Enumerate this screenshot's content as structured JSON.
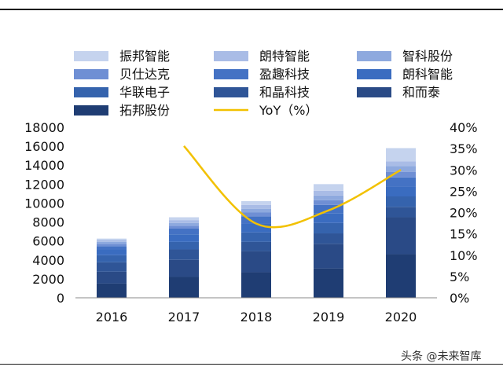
{
  "chart_data": {
    "type": "bar",
    "categories": [
      "2016",
      "2017",
      "2018",
      "2019",
      "2020"
    ],
    "series": [
      {
        "name": "拓邦股份",
        "color": "#1f3d73",
        "values": [
          1500,
          2200,
          2700,
          3100,
          4600
        ]
      },
      {
        "name": "和而泰",
        "color": "#2a4a86",
        "values": [
          1250,
          1800,
          2200,
          2600,
          3900
        ]
      },
      {
        "name": "和晶科技",
        "color": "#2f5597",
        "values": [
          1000,
          1100,
          1000,
          1100,
          1100
        ]
      },
      {
        "name": "华联电子",
        "color": "#3563ad",
        "values": [
          750,
          800,
          1000,
          1100,
          1100
        ]
      },
      {
        "name": "朗科智能",
        "color": "#3a6cc0",
        "values": [
          600,
          800,
          900,
          1000,
          1000
        ]
      },
      {
        "name": "盈趣科技",
        "color": "#4472c4",
        "values": [
          350,
          600,
          800,
          900,
          1000
        ]
      },
      {
        "name": "贝仕达克",
        "color": "#6f8fd4",
        "values": [
          250,
          300,
          400,
          500,
          600
        ]
      },
      {
        "name": "智科股份",
        "color": "#8ea9de",
        "values": [
          200,
          300,
          400,
          500,
          600
        ]
      },
      {
        "name": "朗特智能",
        "color": "#a9bce6",
        "values": [
          200,
          300,
          400,
          500,
          500
        ]
      },
      {
        "name": "振邦智能",
        "color": "#c5d3ee",
        "values": [
          150,
          300,
          400,
          700,
          1400
        ]
      }
    ],
    "line": {
      "name": "YoY（%）",
      "color": "#f2c100",
      "axis": "right",
      "values": [
        null,
        35.6,
        17.4,
        20.5,
        30.0
      ]
    },
    "y_left": {
      "min": 0,
      "max": 18000,
      "step": 2000,
      "ticks": [
        "0",
        "2000",
        "4000",
        "6000",
        "8000",
        "10000",
        "12000",
        "14000",
        "16000",
        "18000"
      ]
    },
    "y_right": {
      "min": 0,
      "max": 40,
      "step": 5,
      "ticks": [
        "0%",
        "5%",
        "10%",
        "15%",
        "20%",
        "25%",
        "30%",
        "35%",
        "40%"
      ]
    },
    "legend_position": "top",
    "grid": false
  },
  "watermark": "头条 @未来智库"
}
